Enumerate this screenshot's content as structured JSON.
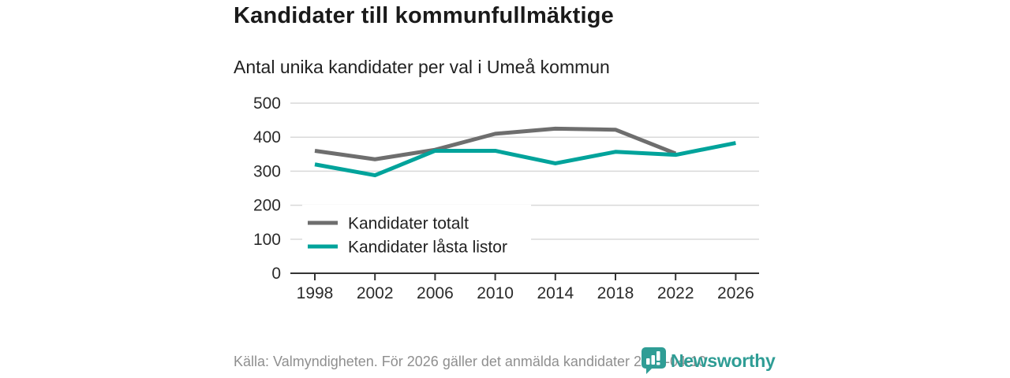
{
  "chart_data": {
    "type": "line",
    "title": "Kandidater till kommunfullmäktige",
    "subtitle": "Antal unika kandidater per val i Umeå kommun",
    "categories": [
      "1998",
      "2002",
      "2006",
      "2010",
      "2014",
      "2018",
      "2022",
      "2026"
    ],
    "series": [
      {
        "name": "Kandidater totalt",
        "color": "#6e6e6e",
        "values": [
          360,
          335,
          363,
          410,
          425,
          422,
          352,
          null
        ]
      },
      {
        "name": "Kandidater låsta listor",
        "color": "#00a39b",
        "values": [
          320,
          288,
          360,
          360,
          323,
          357,
          348,
          383
        ]
      }
    ],
    "xlabel": "",
    "ylabel": "",
    "ylim": [
      0,
      500
    ],
    "yticks": [
      0,
      100,
      200,
      300,
      400,
      500
    ],
    "grid": true,
    "legend_position": "inside-bottom-left",
    "axis_color": "#333333",
    "gridline_color": "#d9d9d9",
    "tick_label_color": "#2b2b2b"
  },
  "footer": {
    "source": "Källa: Valmyndigheten. För 2026 gäller det anmälda kandidater 2026-04-10."
  },
  "branding": {
    "name": "Newsworthy",
    "color": "#2f9d95"
  }
}
